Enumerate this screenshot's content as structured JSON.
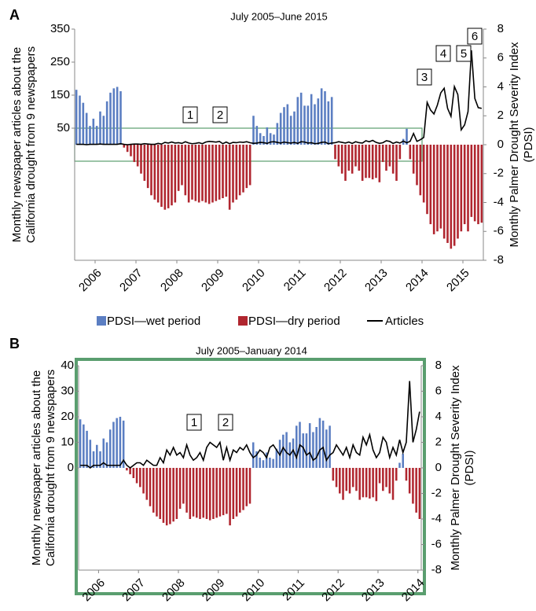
{
  "chart_data": [
    {
      "type": "bar",
      "panel": "A",
      "title": "July 2005–June 2015",
      "ylabel": [
        "Monthly newspaper articles about the",
        "California drought from 9 newspapers"
      ],
      "y2label": [
        "Monthly Palmer Drought Severity Index",
        "(PDSI)"
      ],
      "categories": [
        null,
        null,
        null,
        null,
        null,
        null,
        "2006",
        null,
        null,
        null,
        null,
        null,
        null,
        null,
        null,
        null,
        null,
        null,
        "2007",
        null,
        null,
        null,
        null,
        null,
        null,
        null,
        null,
        null,
        null,
        null,
        "2008",
        null,
        null,
        null,
        null,
        null,
        null,
        null,
        null,
        null,
        null,
        null,
        "2009",
        null,
        null,
        null,
        null,
        null,
        null,
        null,
        null,
        null,
        null,
        null,
        "2010",
        null,
        null,
        null,
        null,
        null,
        null,
        null,
        null,
        null,
        null,
        null,
        "2011",
        null,
        null,
        null,
        null,
        null,
        null,
        null,
        null,
        null,
        null,
        null,
        "2012",
        null,
        null,
        null,
        null,
        null,
        null,
        null,
        null,
        null,
        null,
        null,
        "2013",
        null,
        null,
        null,
        null,
        null,
        null,
        null,
        null,
        null,
        null,
        null,
        "2014",
        null,
        null,
        null,
        null,
        null,
        null,
        null,
        null,
        null,
        null,
        null,
        "2015",
        null,
        null,
        null,
        null,
        null
      ],
      "ylim": [
        -350,
        350
      ],
      "yticks": [
        50,
        150,
        250,
        350
      ],
      "y2lim": [
        -8,
        8
      ],
      "y2ticks": [
        -8,
        -6,
        -4,
        -2,
        0,
        2,
        4,
        6,
        8
      ],
      "annotations": [
        "1",
        "2",
        "3",
        "4",
        "5",
        "6"
      ],
      "legend": "bottom",
      "series": [
        {
          "name": "PDSI—wet period",
          "color": "#5b7ec2",
          "axis": "y2",
          "kind": "bar",
          "values": [
            3.8,
            3.4,
            2.9,
            2.2,
            1.3,
            1.8,
            1.3,
            2.3,
            2.0,
            3.0,
            3.6,
            3.9,
            4.0,
            3.7,
            null,
            null,
            null,
            null,
            null,
            null,
            null,
            null,
            null,
            null,
            null,
            null,
            null,
            null,
            null,
            null,
            null,
            null,
            null,
            null,
            null,
            null,
            null,
            null,
            null,
            null,
            null,
            null,
            null,
            null,
            null,
            null,
            null,
            null,
            null,
            null,
            null,
            null,
            2.0,
            1.3,
            0.8,
            0.6,
            1.2,
            0.8,
            0.7,
            1.5,
            2.2,
            2.6,
            2.8,
            2.0,
            2.3,
            3.3,
            3.6,
            2.7,
            2.7,
            3.5,
            2.8,
            3.2,
            3.9,
            3.7,
            3.0,
            3.3,
            null,
            null,
            null,
            null,
            null,
            null,
            null,
            null,
            null,
            null,
            null,
            null,
            null,
            null,
            null,
            null,
            null,
            null,
            null,
            null,
            0.4,
            1.1,
            null,
            null,
            null,
            null,
            null,
            null,
            null,
            null,
            null,
            null,
            null,
            null,
            null,
            null,
            null,
            null,
            null,
            null,
            null,
            null,
            null,
            null
          ]
        },
        {
          "name": "PDSI—dry period",
          "color": "#b0262f",
          "axis": "y2",
          "kind": "bar",
          "values": [
            null,
            null,
            null,
            null,
            null,
            null,
            null,
            null,
            null,
            null,
            null,
            null,
            null,
            null,
            -0.2,
            -0.5,
            -0.8,
            -1.2,
            -1.5,
            -2.0,
            -2.5,
            -3.0,
            -3.5,
            -3.8,
            -4.0,
            -4.3,
            -4.5,
            -4.4,
            -4.2,
            -4.0,
            -3.2,
            -2.8,
            -3.5,
            -4.0,
            -3.8,
            -3.9,
            -4.0,
            -3.9,
            -4.0,
            -4.1,
            -4.0,
            -3.9,
            -3.8,
            -3.7,
            -3.6,
            -4.5,
            -4.0,
            -3.8,
            -3.5,
            -3.3,
            -3.0,
            -2.8,
            null,
            null,
            null,
            null,
            null,
            null,
            null,
            null,
            null,
            null,
            null,
            null,
            null,
            null,
            null,
            null,
            null,
            null,
            null,
            null,
            null,
            null,
            null,
            null,
            -1.0,
            -1.5,
            -2.0,
            -2.5,
            -1.8,
            -2.0,
            -1.5,
            -1.8,
            -2.5,
            -2.3,
            -2.3,
            -2.4,
            -2.3,
            -2.6,
            -1.2,
            -1.8,
            -1.5,
            -2.0,
            -2.5,
            -1.0,
            null,
            null,
            -1.0,
            -2.0,
            -2.8,
            -3.5,
            -4.0,
            -4.8,
            -5.5,
            -6.2,
            -6.0,
            -5.8,
            -6.5,
            -6.8,
            -7.2,
            -7.0,
            -6.5,
            -6.0,
            -5.5,
            -6.0,
            -5.0,
            -5.3,
            -5.5,
            -5.4
          ]
        },
        {
          "name": "Articles",
          "color": "#000000",
          "axis": "y",
          "kind": "line",
          "values": [
            1,
            1,
            1,
            0,
            1,
            1,
            1,
            2,
            1,
            1,
            1,
            1,
            1,
            3,
            1,
            0,
            1,
            2,
            2,
            1,
            3,
            2,
            1,
            1,
            4,
            2,
            7,
            5,
            8,
            5,
            6,
            4,
            9,
            5,
            3,
            4,
            6,
            3,
            8,
            10,
            9,
            8,
            10,
            3,
            8,
            3,
            7,
            6,
            8,
            7,
            9,
            6,
            4,
            5,
            7,
            6,
            4,
            8,
            9,
            7,
            5,
            8,
            6,
            5,
            7,
            4,
            9,
            8,
            5,
            6,
            3,
            4,
            7,
            8,
            3,
            5,
            6,
            9,
            7,
            5,
            8,
            4,
            9,
            6,
            5,
            12,
            9,
            13,
            7,
            4,
            6,
            12,
            10,
            4,
            8,
            5,
            11,
            6,
            10,
            34,
            10,
            15,
            22,
            128,
            105,
            93,
            120,
            157,
            171,
            110,
            86,
            176,
            152,
            45,
            60,
            100,
            286,
            140,
            112,
            110
          ]
        }
      ]
    },
    {
      "type": "bar",
      "panel": "B",
      "title": "July 2005–January 2014",
      "ylabel": [
        "Monthly newspaper articles about the",
        "California drought from 9 newspapers"
      ],
      "y2label": [
        "Monthly Palmer Drought Severity Index",
        "(PDSI)"
      ],
      "categories": [
        null,
        null,
        null,
        null,
        null,
        null,
        "2006",
        null,
        null,
        null,
        null,
        null,
        null,
        null,
        null,
        null,
        null,
        null,
        "2007",
        null,
        null,
        null,
        null,
        null,
        null,
        null,
        null,
        null,
        null,
        null,
        "2008",
        null,
        null,
        null,
        null,
        null,
        null,
        null,
        null,
        null,
        null,
        null,
        "2009",
        null,
        null,
        null,
        null,
        null,
        null,
        null,
        null,
        null,
        null,
        null,
        "2010",
        null,
        null,
        null,
        null,
        null,
        null,
        null,
        null,
        null,
        null,
        null,
        "2011",
        null,
        null,
        null,
        null,
        null,
        null,
        null,
        null,
        null,
        null,
        null,
        "2012",
        null,
        null,
        null,
        null,
        null,
        null,
        null,
        null,
        null,
        null,
        null,
        "2013",
        null,
        null,
        null,
        null,
        null,
        null,
        null,
        null,
        null,
        null,
        null,
        "2014"
      ],
      "ylim": [
        -40,
        40
      ],
      "yticks": [
        0,
        10,
        20,
        30,
        40
      ],
      "y2lim": [
        -8,
        8
      ],
      "y2ticks": [
        -8,
        -6,
        -4,
        -2,
        0,
        2,
        4,
        6,
        8
      ],
      "annotations": [
        "1",
        "2"
      ],
      "series": [
        {
          "color": "#5b7ec2",
          "axis": "y2",
          "kind": "bar",
          "values": [
            3.8,
            3.4,
            2.9,
            2.2,
            1.3,
            1.8,
            1.3,
            2.3,
            2.0,
            3.0,
            3.6,
            3.9,
            4.0,
            3.7,
            null,
            null,
            null,
            null,
            null,
            null,
            null,
            null,
            null,
            null,
            null,
            null,
            null,
            null,
            null,
            null,
            null,
            null,
            null,
            null,
            null,
            null,
            null,
            null,
            null,
            null,
            null,
            null,
            null,
            null,
            null,
            null,
            null,
            null,
            null,
            null,
            null,
            null,
            2.0,
            1.3,
            0.8,
            0.6,
            1.2,
            0.8,
            0.7,
            1.5,
            2.2,
            2.6,
            2.8,
            2.0,
            2.3,
            3.3,
            3.6,
            2.7,
            2.7,
            3.5,
            2.8,
            3.2,
            3.9,
            3.7,
            3.0,
            3.3,
            null,
            null,
            null,
            null,
            null,
            null,
            null,
            null,
            null,
            null,
            null,
            null,
            null,
            null,
            null,
            null,
            null,
            null,
            null,
            null,
            0.4,
            1.1,
            null,
            null,
            null,
            null,
            null
          ]
        },
        {
          "color": "#b0262f",
          "axis": "y2",
          "kind": "bar",
          "values": [
            null,
            null,
            null,
            null,
            null,
            null,
            null,
            null,
            null,
            null,
            null,
            null,
            null,
            null,
            -0.2,
            -0.5,
            -0.8,
            -1.2,
            -1.5,
            -2.0,
            -2.5,
            -3.0,
            -3.5,
            -3.8,
            -4.0,
            -4.3,
            -4.5,
            -4.4,
            -4.2,
            -4.0,
            -3.2,
            -2.8,
            -3.5,
            -4.0,
            -3.8,
            -3.9,
            -4.0,
            -3.9,
            -4.0,
            -4.1,
            -4.0,
            -3.9,
            -3.8,
            -3.7,
            -3.6,
            -4.5,
            -4.0,
            -3.8,
            -3.5,
            -3.3,
            -3.0,
            -2.8,
            null,
            null,
            null,
            null,
            null,
            null,
            null,
            null,
            null,
            null,
            null,
            null,
            null,
            null,
            null,
            null,
            null,
            null,
            null,
            null,
            null,
            null,
            null,
            null,
            -1.0,
            -1.5,
            -2.0,
            -2.5,
            -1.8,
            -2.0,
            -1.5,
            -1.8,
            -2.5,
            -2.3,
            -2.3,
            -2.4,
            -2.3,
            -2.6,
            -1.2,
            -1.8,
            -1.5,
            -2.0,
            -2.5,
            -1.0,
            null,
            null,
            -1.0,
            -2.0,
            -2.8,
            -3.5,
            -4.0
          ]
        },
        {
          "color": "#000000",
          "axis": "y",
          "kind": "line",
          "values": [
            1,
            1,
            1,
            0,
            1,
            1,
            1,
            2,
            1,
            1,
            1,
            1,
            1,
            3,
            1,
            0,
            1,
            2,
            2,
            1,
            3,
            2,
            1,
            1,
            4,
            2,
            7,
            5,
            8,
            5,
            6,
            4,
            9,
            5,
            3,
            4,
            6,
            3,
            8,
            10,
            9,
            8,
            10,
            3,
            8,
            3,
            7,
            6,
            8,
            7,
            9,
            6,
            4,
            5,
            7,
            6,
            4,
            8,
            9,
            7,
            5,
            8,
            6,
            5,
            7,
            4,
            9,
            8,
            5,
            6,
            3,
            4,
            7,
            8,
            3,
            5,
            6,
            9,
            7,
            5,
            8,
            4,
            9,
            6,
            5,
            12,
            9,
            13,
            7,
            4,
            6,
            12,
            10,
            4,
            8,
            5,
            11,
            6,
            10,
            34,
            10,
            15,
            22
          ]
        }
      ]
    }
  ]
}
